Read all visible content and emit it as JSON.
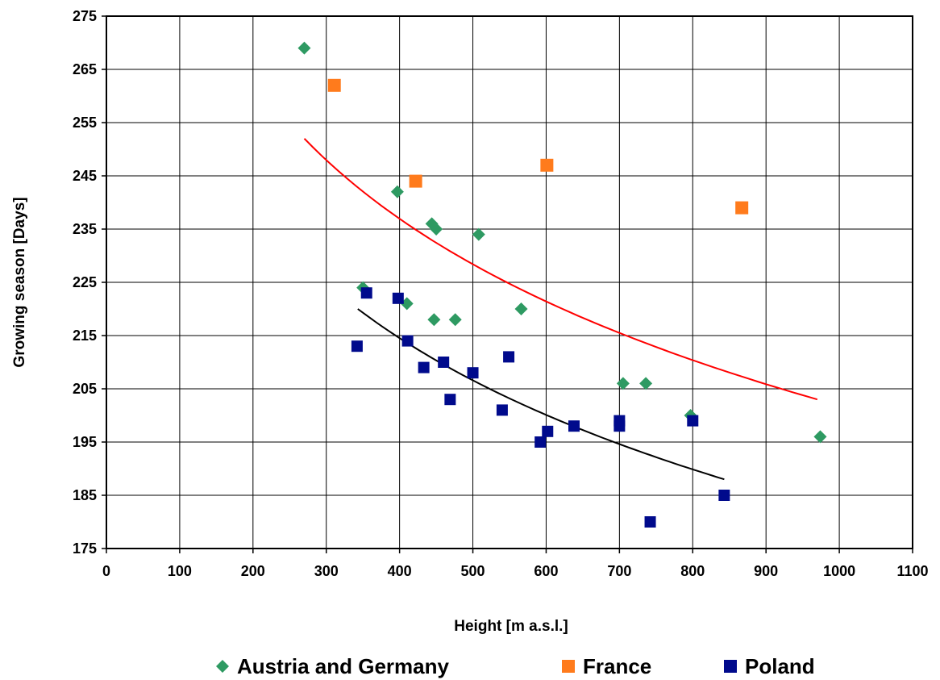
{
  "chart_data": {
    "type": "scatter",
    "xlabel": "Height [m a.s.l.]",
    "ylabel": "Growing season [Days]",
    "xlim": [
      0,
      1100
    ],
    "ylim": [
      175,
      275
    ],
    "x_ticks": [
      0,
      100,
      200,
      300,
      400,
      500,
      600,
      700,
      800,
      900,
      1000,
      1100
    ],
    "y_ticks": [
      175,
      185,
      195,
      205,
      215,
      225,
      235,
      245,
      255,
      265,
      275
    ],
    "grid": true,
    "legend_position": "bottom",
    "series": [
      {
        "name": "Austria and Germany",
        "marker": "diamond",
        "color": "#2e9a62",
        "points": [
          [
            270,
            269
          ],
          [
            350,
            224
          ],
          [
            397,
            242
          ],
          [
            410,
            221
          ],
          [
            444,
            236
          ],
          [
            450,
            235
          ],
          [
            447,
            218
          ],
          [
            476,
            218
          ],
          [
            508,
            234
          ],
          [
            566,
            220
          ],
          [
            705,
            206
          ],
          [
            736,
            206
          ],
          [
            797,
            200
          ],
          [
            974,
            196
          ]
        ]
      },
      {
        "name": "France",
        "marker": "square",
        "color": "#ff7b1c",
        "points": [
          [
            311,
            262
          ],
          [
            422,
            244
          ],
          [
            601,
            247
          ],
          [
            867,
            239
          ]
        ]
      },
      {
        "name": "Poland",
        "marker": "square",
        "color": "#000a8c",
        "points": [
          [
            342,
            213
          ],
          [
            355,
            223
          ],
          [
            398,
            222
          ],
          [
            411,
            214
          ],
          [
            433,
            209
          ],
          [
            460,
            210
          ],
          [
            469,
            203
          ],
          [
            500,
            208
          ],
          [
            540,
            201
          ],
          [
            549,
            211
          ],
          [
            592,
            195
          ],
          [
            602,
            197
          ],
          [
            638,
            198
          ],
          [
            700,
            199
          ],
          [
            700,
            198
          ],
          [
            742,
            180
          ],
          [
            800,
            199
          ],
          [
            843,
            185
          ]
        ]
      }
    ],
    "trendlines": [
      {
        "type": "logarithmic",
        "color": "#ff0000",
        "x_range": [
          270,
          970
        ],
        "y_at_start": 252,
        "y_at_end": 203
      },
      {
        "type": "logarithmic",
        "color": "#000000",
        "x_range": [
          343,
          843
        ],
        "y_at_start": 220,
        "y_at_end": 188
      }
    ]
  }
}
